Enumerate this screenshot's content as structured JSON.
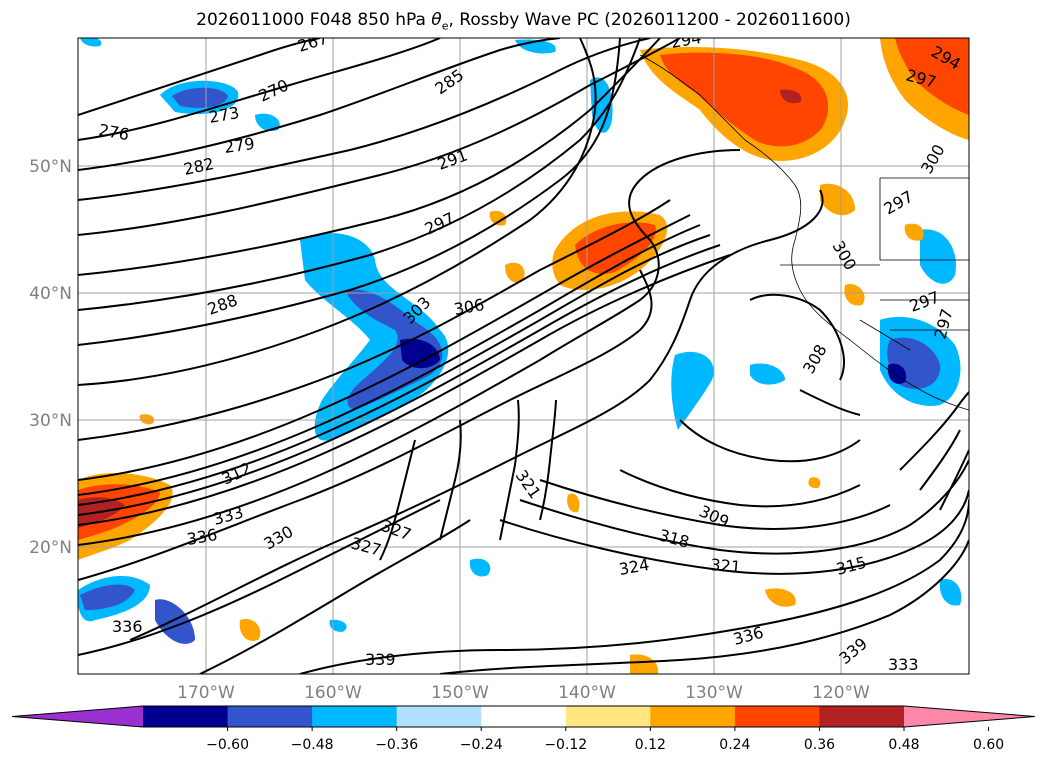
{
  "title_prefix": "2026011000 F048 850 hPa ",
  "title_theta": "θ",
  "title_sub": "e",
  "title_suffix": ", Rossby Wave PC (2026011200 - 2026011600)",
  "lat_labels": [
    "50°N",
    "40°N",
    "30°N",
    "20°N"
  ],
  "lon_labels": [
    "170°W",
    "160°W",
    "150°W",
    "140°W",
    "130°W",
    "120°W"
  ],
  "contour_labels": [
    "267",
    "270",
    "273",
    "276",
    "279",
    "282",
    "285",
    "288",
    "291",
    "294",
    "297",
    "297",
    "297",
    "300",
    "300",
    "303",
    "306",
    "308",
    "309",
    "312",
    "315",
    "318",
    "321",
    "321",
    "324",
    "327",
    "327",
    "330",
    "333",
    "333",
    "336",
    "336",
    "336",
    "339",
    "339",
    "294",
    "297",
    "297"
  ],
  "colorbar": {
    "labels": [
      "−0.60",
      "−0.48",
      "−0.36",
      "−0.24",
      "−0.12",
      "0.12",
      "0.24",
      "0.36",
      "0.48",
      "0.60"
    ],
    "colors": [
      "#9b30d0",
      "#000090",
      "#3355cc",
      "#00b8ff",
      "#b0e0ff",
      "#ffffff",
      "#ffe680",
      "#ffa500",
      "#ff4500",
      "#b22222",
      "#ff88aa"
    ]
  }
}
